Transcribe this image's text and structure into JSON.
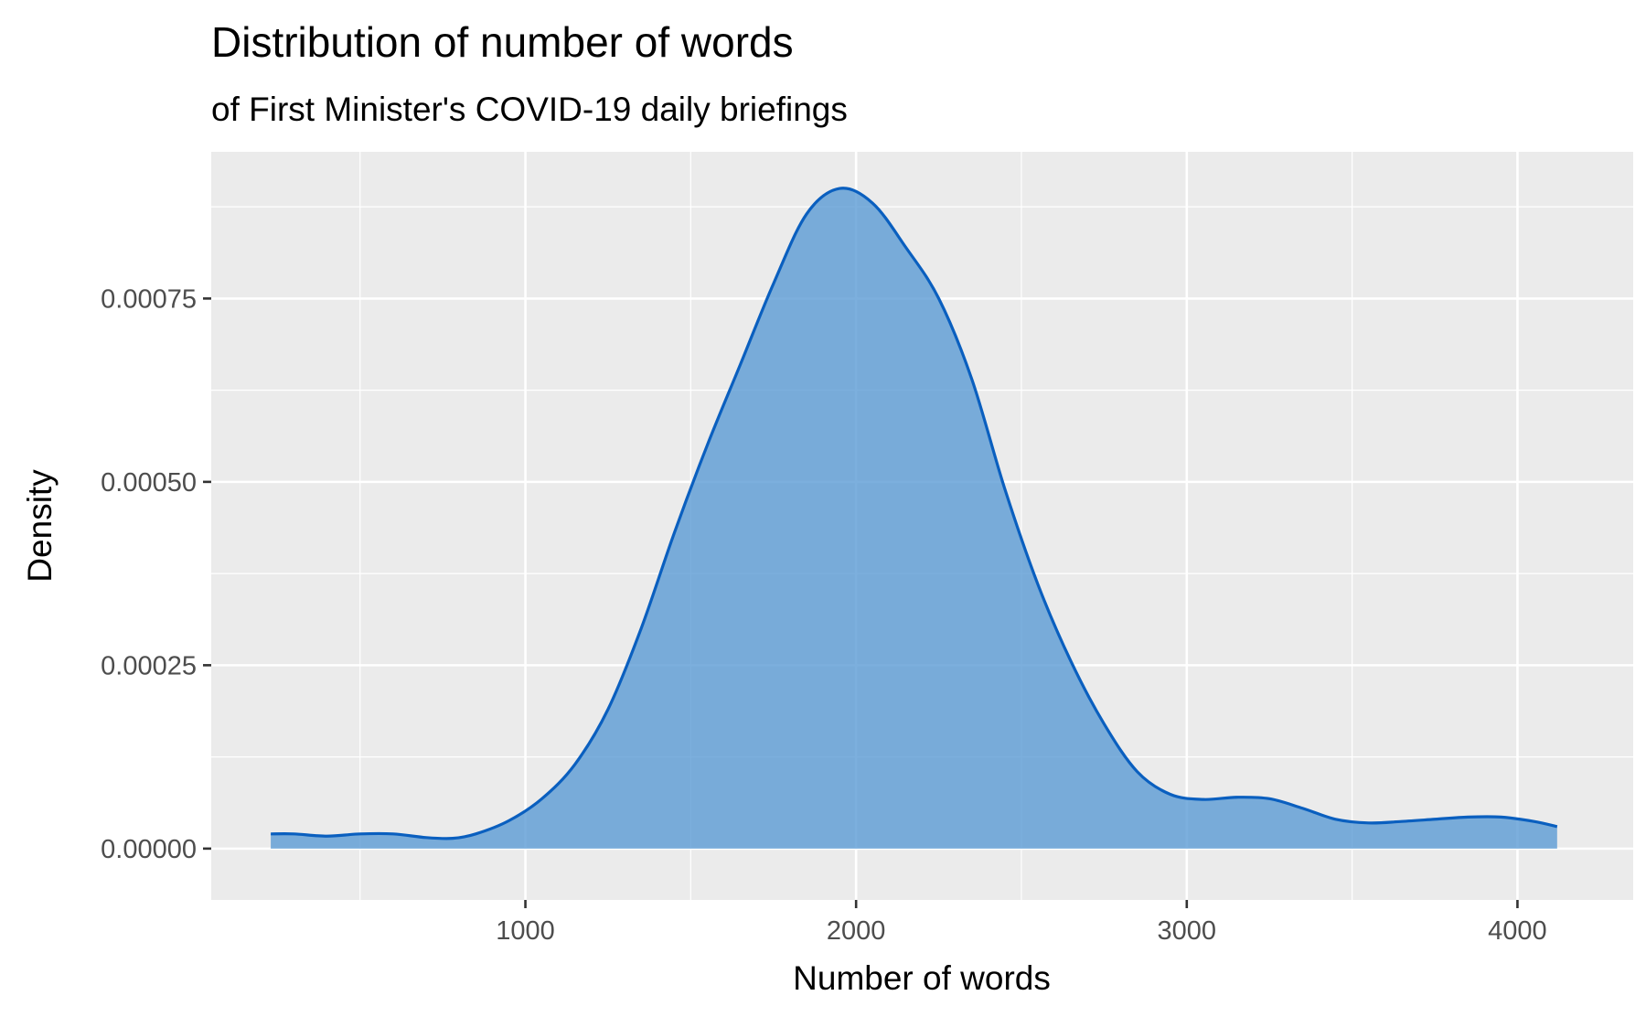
{
  "chart_data": {
    "type": "area",
    "title": "Distribution of number of words",
    "subtitle": "of First Minister's COVID-19 daily briefings",
    "xlabel": "Number of words",
    "ylabel": "Density",
    "xlim": [
      50,
      4350
    ],
    "ylim": [
      -7e-05,
      0.00095
    ],
    "x_ticks": [
      1000,
      2000,
      3000,
      4000
    ],
    "x_tick_labels": [
      "1000",
      "2000",
      "3000",
      "4000"
    ],
    "x_minor_ticks": [
      500,
      1500,
      2500,
      3500
    ],
    "y_ticks": [
      0,
      0.00025,
      0.0005,
      0.00075
    ],
    "y_tick_labels": [
      "0.00000",
      "0.00025",
      "0.00050",
      "0.00075"
    ],
    "y_minor_ticks": [
      0.000125,
      0.000375,
      0.000625,
      0.000875
    ],
    "grid": true,
    "legend": "none",
    "colors": {
      "line": "#0a5fbf",
      "fill": "#5b9bd5",
      "panel": "#ebebeb",
      "grid": "#ffffff"
    },
    "series": [
      {
        "x": [
          230,
          300,
          400,
          500,
          600,
          700,
          780,
          850,
          950,
          1050,
          1150,
          1250,
          1350,
          1450,
          1550,
          1650,
          1750,
          1850,
          1950,
          2050,
          2150,
          2250,
          2350,
          2450,
          2550,
          2650,
          2750,
          2850,
          2950,
          3050,
          3150,
          3250,
          3350,
          3450,
          3550,
          3650,
          3750,
          3850,
          3950,
          4050,
          4120
        ],
        "y": [
          2e-05,
          2e-05,
          1.7e-05,
          2e-05,
          2e-05,
          1.5e-05,
          1.4e-05,
          2e-05,
          3.8e-05,
          6.8e-05,
          0.000115,
          0.00019,
          0.0003,
          0.00043,
          0.00055,
          0.00066,
          0.00077,
          0.000865,
          0.0009,
          0.00088,
          0.00082,
          0.00075,
          0.00064,
          0.00049,
          0.00036,
          0.000255,
          0.00017,
          0.000105,
          7.4e-05,
          6.7e-05,
          7e-05,
          6.8e-05,
          5.5e-05,
          4e-05,
          3.5e-05,
          3.7e-05,
          4e-05,
          4.3e-05,
          4.3e-05,
          3.7e-05,
          3e-05
        ]
      }
    ]
  }
}
